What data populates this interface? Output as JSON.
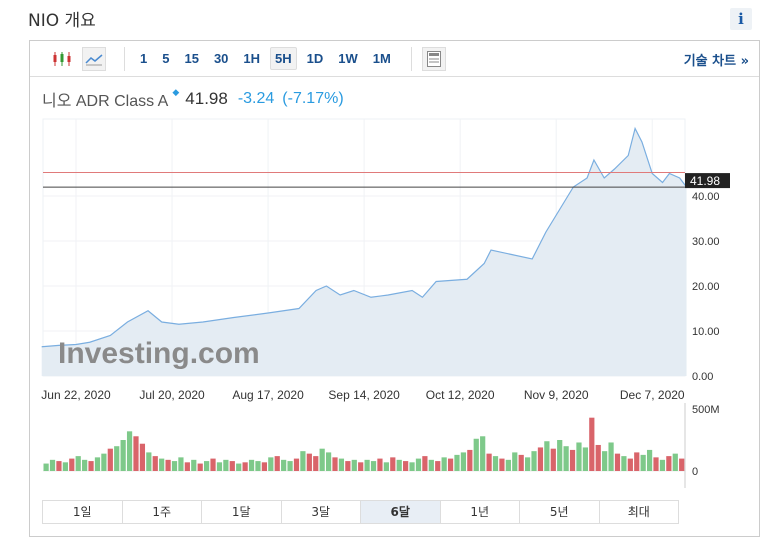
{
  "page": {
    "title": "NIO 개요",
    "info_label": "i"
  },
  "toolbar": {
    "intervals": [
      "1",
      "5",
      "15",
      "30",
      "1H",
      "5H",
      "1D",
      "1W",
      "1M"
    ],
    "active_interval": "5H",
    "tech_chart": "기술 차트 »"
  },
  "quote": {
    "name": "니오 ADR Class A",
    "price": "41.98",
    "change": "-3.24",
    "change_pct": "(-7.17%)"
  },
  "watermark": "Investing.com",
  "ranges": [
    "1일",
    "1주",
    "1달",
    "3달",
    "6달",
    "1년",
    "5년",
    "최대"
  ],
  "active_range": "6달",
  "colors": {
    "line": "#7aaee0",
    "area": "#e4ecf3",
    "up": "#7ec98a",
    "down": "#d9646a",
    "prev_close": "#e07a7a"
  },
  "chart_data": {
    "type": "area",
    "x_ticks": [
      "Jun 22, 2020",
      "Jul 20, 2020",
      "Aug 17, 2020",
      "Sep 14, 2020",
      "Oct 12, 2020",
      "Nov 9, 2020",
      "Dec 7, 2020"
    ],
    "x_tick_dates": [
      "2020-06-22",
      "2020-07-20",
      "2020-08-17",
      "2020-09-14",
      "2020-10-12",
      "2020-11-09",
      "2020-12-07"
    ],
    "y_ticks": [
      "0.00",
      "10.00",
      "20.00",
      "30.00",
      "40.00"
    ],
    "ylim": [
      0,
      57
    ],
    "last_label": "41.98",
    "prev_close": 45.22,
    "price": [
      [
        "2020-06-12",
        6.5
      ],
      [
        "2020-06-17",
        6.8
      ],
      [
        "2020-06-22",
        7
      ],
      [
        "2020-06-26",
        7.5
      ],
      [
        "2020-07-02",
        9
      ],
      [
        "2020-07-07",
        12
      ],
      [
        "2020-07-13",
        14.5
      ],
      [
        "2020-07-17",
        12
      ],
      [
        "2020-07-22",
        11.5
      ],
      [
        "2020-07-29",
        12
      ],
      [
        "2020-08-07",
        13
      ],
      [
        "2020-08-17",
        14
      ],
      [
        "2020-08-26",
        15
      ],
      [
        "2020-08-31",
        19
      ],
      [
        "2020-09-03",
        20
      ],
      [
        "2020-09-07",
        18
      ],
      [
        "2020-09-11",
        19
      ],
      [
        "2020-09-16",
        17.5
      ],
      [
        "2020-09-21",
        18
      ],
      [
        "2020-09-28",
        19
      ],
      [
        "2020-10-01",
        17.5
      ],
      [
        "2020-10-05",
        21
      ],
      [
        "2020-10-14",
        21.5
      ],
      [
        "2020-10-19",
        25
      ],
      [
        "2020-10-21",
        28
      ],
      [
        "2020-10-27",
        27
      ],
      [
        "2020-11-02",
        26
      ],
      [
        "2020-11-06",
        32
      ],
      [
        "2020-11-10",
        37
      ],
      [
        "2020-11-14",
        42
      ],
      [
        "2020-11-18",
        44
      ],
      [
        "2020-11-20",
        48
      ],
      [
        "2020-11-23",
        44
      ],
      [
        "2020-11-26",
        46
      ],
      [
        "2020-11-30",
        49
      ],
      [
        "2020-12-02",
        55
      ],
      [
        "2020-12-04",
        52
      ],
      [
        "2020-12-07",
        45
      ],
      [
        "2020-12-10",
        43
      ],
      [
        "2020-12-12",
        45
      ],
      [
        "2020-12-15",
        44
      ],
      [
        "2020-12-17",
        41.98
      ]
    ],
    "volume_label": "500M",
    "volume_zero": "0",
    "volume_max": 500,
    "volume": [
      60,
      90,
      80,
      70,
      100,
      120,
      90,
      80,
      110,
      140,
      180,
      200,
      250,
      320,
      280,
      220,
      150,
      120,
      100,
      90,
      80,
      110,
      70,
      90,
      60,
      80,
      100,
      70,
      90,
      80,
      60,
      70,
      90,
      80,
      70,
      110,
      120,
      90,
      80,
      100,
      160,
      140,
      120,
      180,
      150,
      110,
      100,
      80,
      90,
      70,
      90,
      80,
      100,
      70,
      110,
      90,
      80,
      70,
      100,
      120,
      90,
      80,
      110,
      100,
      130,
      150,
      170,
      260,
      280,
      140,
      120,
      100,
      90,
      150,
      130,
      110,
      160,
      190,
      240,
      180,
      250,
      200,
      170,
      230,
      190,
      430,
      210,
      160,
      230,
      140,
      120,
      100,
      150,
      130,
      170,
      110,
      90,
      120,
      140,
      100
    ],
    "volume_up": [
      1,
      1,
      0,
      1,
      0,
      1,
      1,
      0,
      1,
      1,
      0,
      1,
      1,
      1,
      0,
      0,
      1,
      0,
      1,
      0,
      1,
      1,
      0,
      1,
      0,
      1,
      0,
      1,
      1,
      0,
      1,
      0,
      1,
      1,
      0,
      1,
      0,
      1,
      1,
      0,
      1,
      0,
      0,
      1,
      1,
      0,
      1,
      0,
      1,
      0,
      1,
      1,
      0,
      1,
      0,
      1,
      0,
      1,
      1,
      0,
      1,
      0,
      1,
      0,
      1,
      1,
      0,
      1,
      1,
      0,
      1,
      0,
      1,
      1,
      0,
      1,
      1,
      0,
      1,
      0,
      1,
      1,
      0,
      1,
      1,
      0,
      0,
      1,
      1,
      0,
      1,
      0,
      0,
      1,
      1,
      0,
      1,
      0,
      1,
      0
    ]
  }
}
